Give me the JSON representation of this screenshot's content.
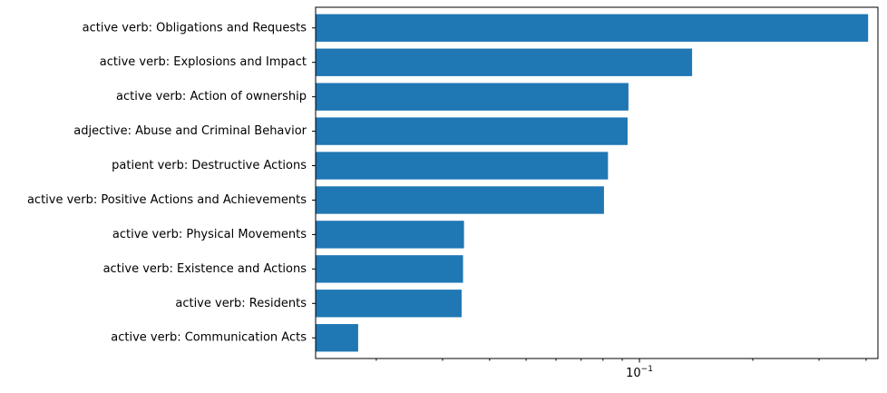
{
  "chart_data": {
    "type": "bar",
    "orientation": "horizontal",
    "x_scale": "log",
    "xlim": [
      0.0138,
      0.43
    ],
    "grid": false,
    "color": "#1f77b4",
    "x_major_ticks": [
      {
        "value": 0.1,
        "base": "10",
        "exponent": "−1"
      }
    ],
    "x_minor_ticks": [
      0.02,
      0.03,
      0.04,
      0.05,
      0.06,
      0.07,
      0.08,
      0.09,
      0.2,
      0.3,
      0.4
    ],
    "categories": [
      "active verb: Obligations and Requests",
      "active verb: Explosions and Impact",
      "active verb: Action of ownership",
      "adjective: Abuse and Criminal Behavior",
      "patient verb: Destructive Actions",
      "active verb: Positive Actions and Achievements",
      "active verb: Physical Movements",
      "active verb: Existence and Actions",
      "active verb: Residents",
      "active verb: Communication Acts"
    ],
    "values": [
      0.405,
      0.138,
      0.0935,
      0.093,
      0.0825,
      0.0805,
      0.0342,
      0.034,
      0.0337,
      0.0179
    ],
    "title": "",
    "xlabel": "",
    "ylabel": ""
  }
}
